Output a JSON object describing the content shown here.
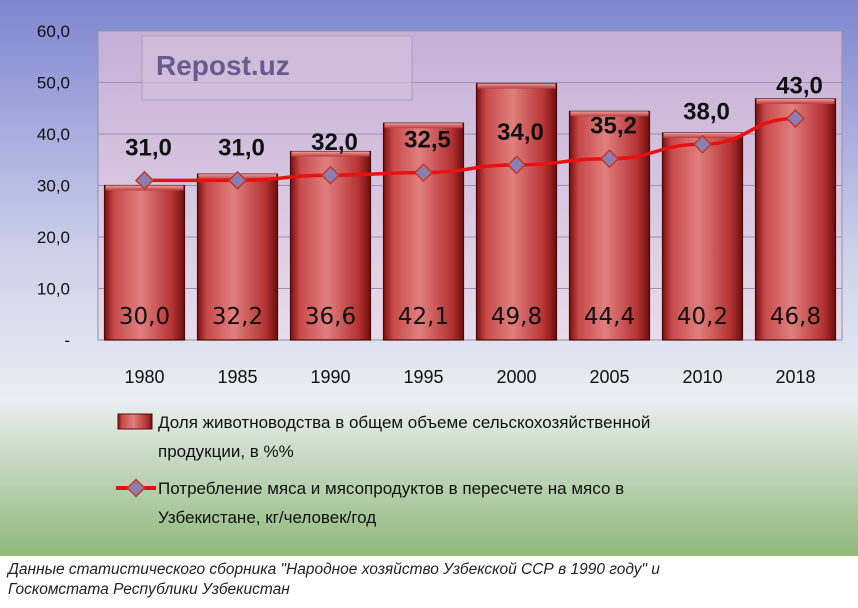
{
  "chart_data": {
    "type": "bar",
    "categories": [
      "1980",
      "1985",
      "1990",
      "1995",
      "2000",
      "2005",
      "2010",
      "2018"
    ],
    "ylim": [
      0,
      60
    ],
    "yticks": [
      {
        "value": 0,
        "label": "-"
      },
      {
        "value": 10,
        "label": "10,0"
      },
      {
        "value": 20,
        "label": "20,0"
      },
      {
        "value": 30,
        "label": "30,0"
      },
      {
        "value": 40,
        "label": "40,0"
      },
      {
        "value": 50,
        "label": "50,0"
      },
      {
        "value": 60,
        "label": "60,0"
      }
    ],
    "grid": true,
    "legend_placement": "bottom",
    "series": [
      {
        "name": "Доля животноводства в общем объеме сельскохозяйственной продукции, в %%",
        "type": "bar",
        "color": "#b03030",
        "values": [
          30.0,
          32.2,
          36.6,
          42.1,
          49.8,
          44.4,
          40.2,
          46.8
        ],
        "labels": [
          "30,0",
          "32,2",
          "36,6",
          "42,1",
          "49,8",
          "44,4",
          "40,2",
          "46,8"
        ]
      },
      {
        "name": "Потребление мяса и мясопродуктов в пересчете на мясо в Узбекистане, кг/человек/год",
        "type": "line",
        "color": "#e81010",
        "values": [
          31.0,
          31.0,
          32.0,
          32.5,
          34.0,
          35.2,
          38.0,
          43.0
        ],
        "labels": [
          "31,0",
          "31,0",
          "32,0",
          "32,5",
          "34,0",
          "35,2",
          "38,0",
          "43,0"
        ]
      }
    ],
    "legend": {
      "bar_lines": [
        "Доля животноводства в общем объеме сельскохозяйственной",
        "продукции, в %%"
      ],
      "line_lines": [
        "Потребление мяса и мясопродуктов в пересчете на мясо в",
        "Узбекистане, кг/человек/год"
      ]
    }
  },
  "watermark": "Repost.uz",
  "caption": {
    "line1": "Данные статистического сборника \"Народное хозяйство Узбекской ССР в 1990 году\" и",
    "line2": "Госкомстата Республики Узбекистан"
  }
}
